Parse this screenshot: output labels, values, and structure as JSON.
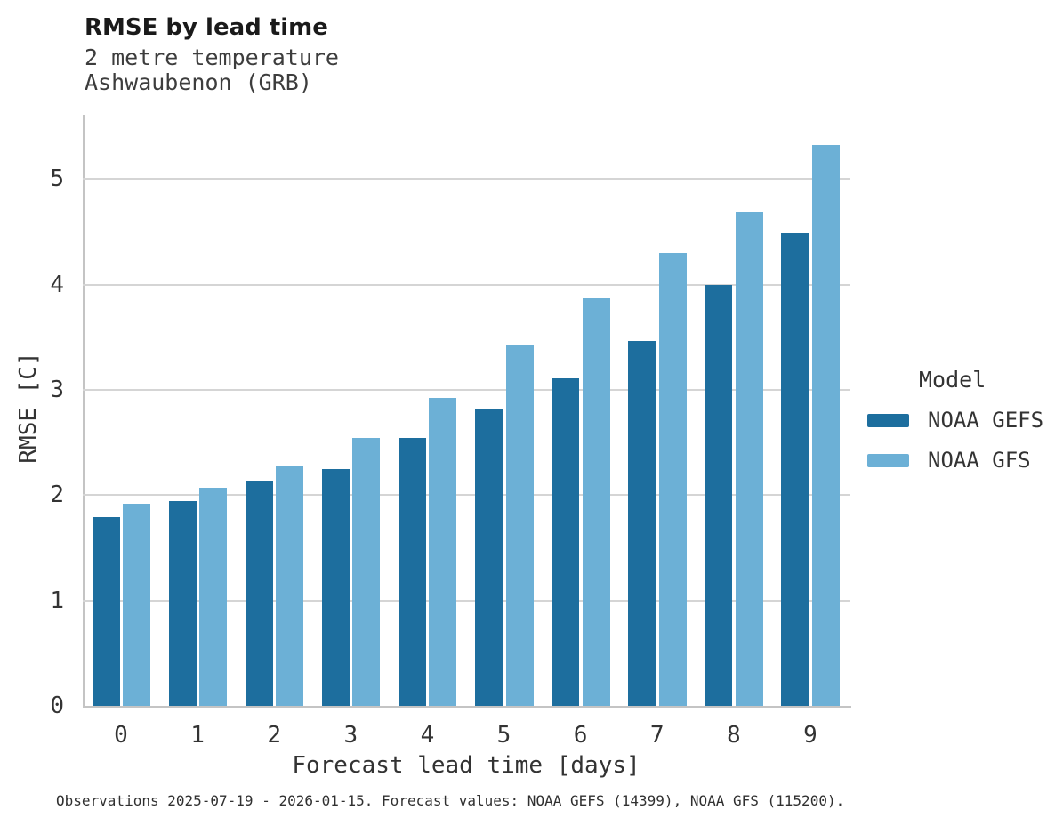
{
  "header": {
    "title": "RMSE by lead time",
    "subtitle_line1": "2 metre temperature",
    "subtitle_line2": "Ashwaubenon (GRB)"
  },
  "axes": {
    "x_title": "Forecast lead time [days]",
    "y_title": "RMSE [C]",
    "x_tick_labels": [
      "0",
      "1",
      "2",
      "3",
      "4",
      "5",
      "6",
      "7",
      "8",
      "9"
    ],
    "y_tick_labels": [
      "0",
      "1",
      "2",
      "3",
      "4",
      "5"
    ]
  },
  "legend": {
    "title": "Model",
    "position": "right"
  },
  "caption": "Observations 2025-07-19 - 2026-01-15. Forecast values: NOAA GEFS (14399), NOAA GFS (115200).",
  "colors": {
    "noaa_gefs": "#1d6e9e",
    "noaa_gfs": "#6cb0d6",
    "gridline": "#d5d5d5",
    "axis_line": "#c4c4c4",
    "text": "#333333",
    "title_text": "#1a1a1a"
  },
  "chart_data": {
    "type": "bar",
    "title": "RMSE by lead time",
    "subtitle": "2 metre temperature — Ashwaubenon (GRB)",
    "xlabel": "Forecast lead time [days]",
    "ylabel": "RMSE [C]",
    "categories": [
      0,
      1,
      2,
      3,
      4,
      5,
      6,
      7,
      8,
      9
    ],
    "series": [
      {
        "name": "NOAA GEFS",
        "color": "#1d6e9e",
        "values": [
          1.79,
          1.94,
          2.14,
          2.25,
          2.54,
          2.82,
          3.11,
          3.46,
          4.0,
          4.49
        ]
      },
      {
        "name": "NOAA GFS",
        "color": "#6cb0d6",
        "values": [
          1.92,
          2.07,
          2.28,
          2.54,
          2.92,
          3.42,
          3.87,
          4.3,
          4.69,
          5.32
        ]
      }
    ],
    "ylim": [
      0,
      5.61
    ],
    "yticks": [
      0,
      1,
      2,
      3,
      4,
      5
    ],
    "grid": true,
    "legend_position": "right"
  }
}
